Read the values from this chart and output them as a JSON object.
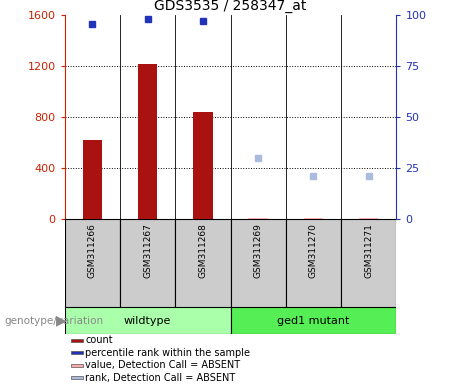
{
  "title": "GDS3535 / 258347_at",
  "samples": [
    "GSM311266",
    "GSM311267",
    "GSM311268",
    "GSM311269",
    "GSM311270",
    "GSM311271"
  ],
  "bar_counts": [
    620,
    1220,
    840,
    0,
    0,
    0
  ],
  "bar_absent_values": [
    0,
    0,
    0,
    10,
    5,
    5
  ],
  "blue_ranks_present": [
    96,
    98,
    97,
    null,
    null,
    null
  ],
  "blue_ranks_absent": [
    null,
    null,
    null,
    null,
    21,
    null
  ],
  "absent_ranks": [
    null,
    null,
    null,
    30,
    null,
    21
  ],
  "bar_color": "#aa1111",
  "bar_absent_color": "#ffaaaa",
  "blue_present_color": "#2233bb",
  "blue_absent_color": "#aabbdd",
  "ylim_left": [
    0,
    1600
  ],
  "ylim_right": [
    0,
    100
  ],
  "yticks_left": [
    0,
    400,
    800,
    1200,
    1600
  ],
  "yticks_right": [
    0,
    25,
    50,
    75,
    100
  ],
  "grid_lines": [
    400,
    800,
    1200
  ],
  "groups": [
    {
      "label": "wildtype",
      "samples": [
        0,
        1,
        2
      ],
      "color": "#aaffaa"
    },
    {
      "label": "ged1 mutant",
      "samples": [
        3,
        4,
        5
      ],
      "color": "#55ee55"
    }
  ],
  "legend_items": [
    {
      "label": "count",
      "color": "#aa1111"
    },
    {
      "label": "percentile rank within the sample",
      "color": "#2233bb"
    },
    {
      "label": "value, Detection Call = ABSENT",
      "color": "#ffaaaa"
    },
    {
      "label": "rank, Detection Call = ABSENT",
      "color": "#aabbdd"
    }
  ],
  "genotype_label": "genotype/variation",
  "sample_box_color": "#cccccc",
  "bar_width": 0.35
}
